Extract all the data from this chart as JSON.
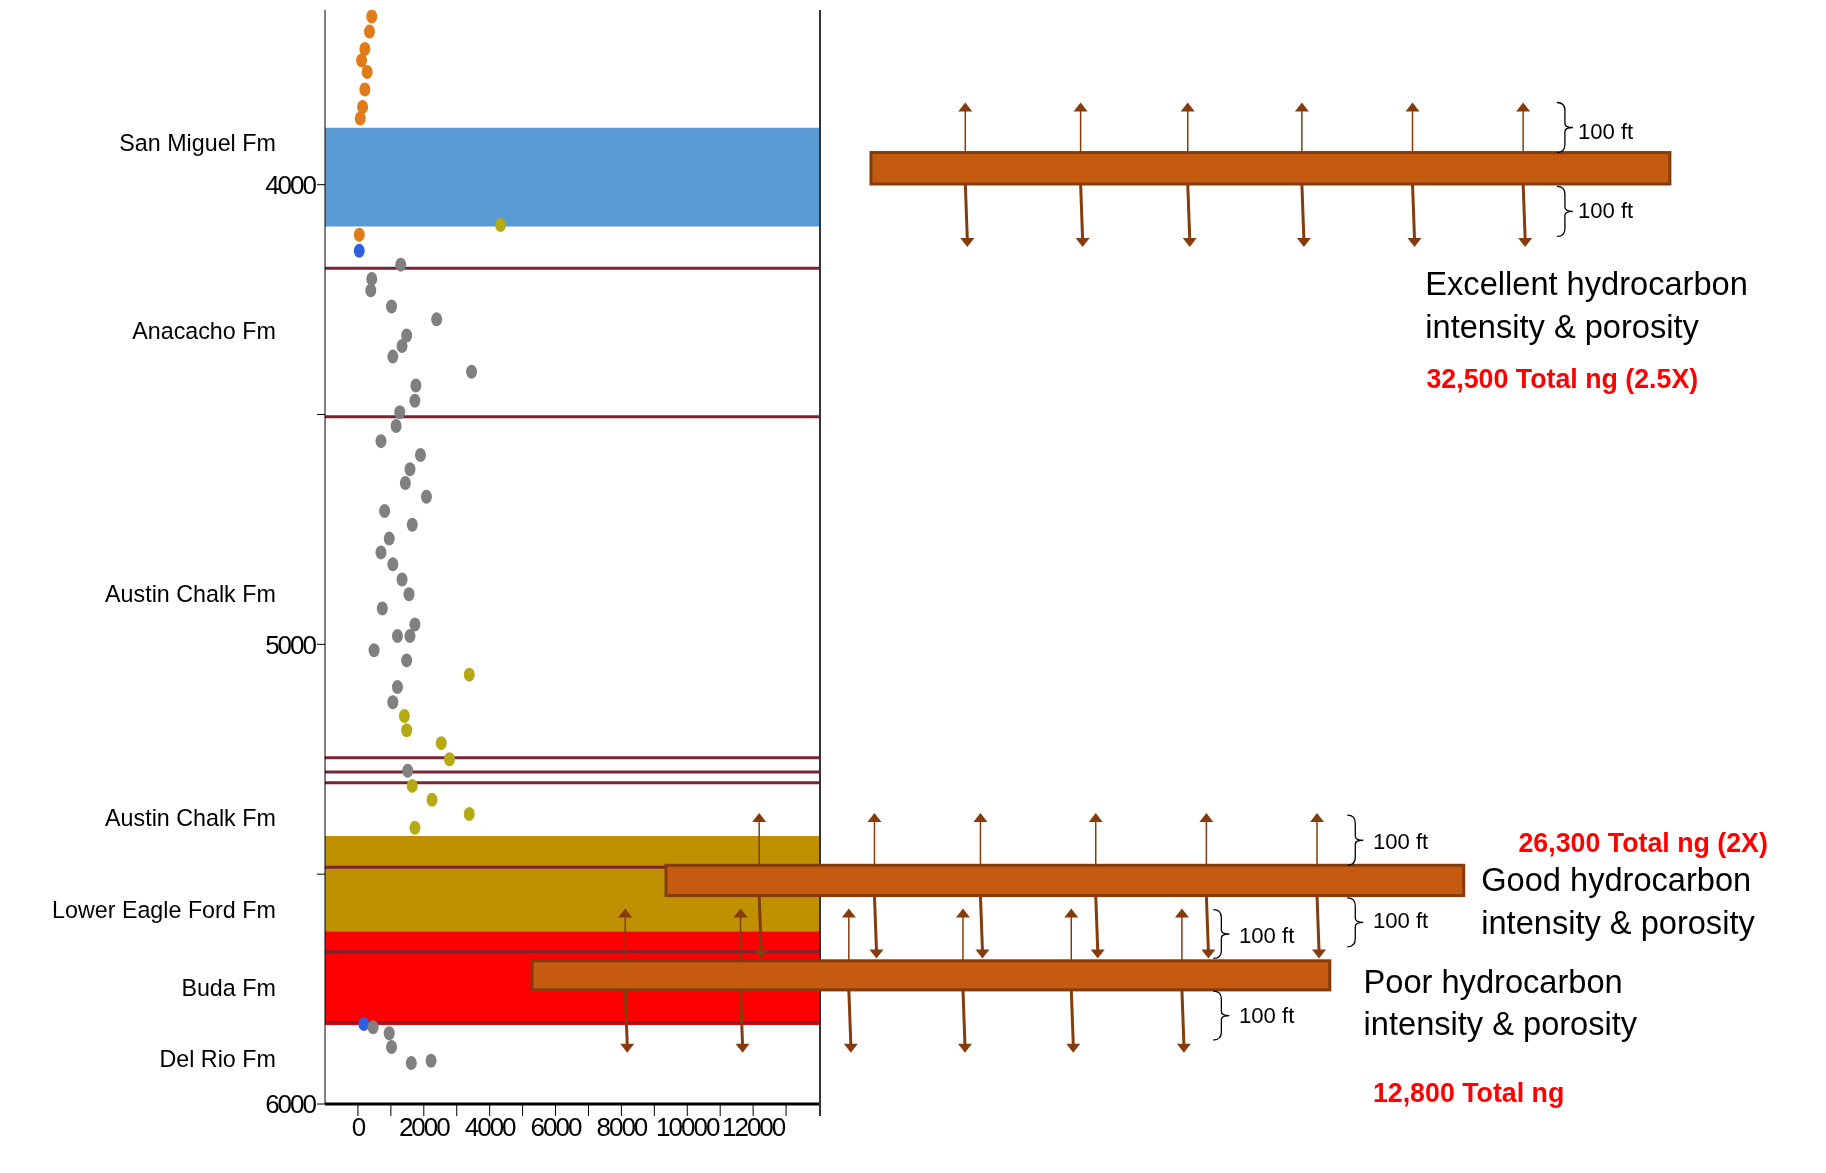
{
  "chart_data": {
    "type": "scatter",
    "marker": "circle",
    "legend": false,
    "grid": false,
    "xlim": [
      -1000,
      14000
    ],
    "xticks": [
      0,
      {
        "value": 1000,
        "label": null
      },
      2000,
      {
        "value": 3000,
        "label": null
      },
      4000,
      {
        "value": 5000,
        "label": null
      },
      6000,
      {
        "value": 7000,
        "label": null
      },
      8000,
      {
        "value": 9000,
        "label": null
      },
      10000,
      {
        "value": 11000,
        "label": null
      },
      12000,
      {
        "value": 13000,
        "label": null
      }
    ],
    "ylim": [
      6000,
      3620
    ],
    "yticks": [
      4000,
      {
        "value": 4500,
        "label": null
      },
      5000,
      {
        "value": 5500,
        "label": null
      },
      6000
    ],
    "series": [
      {
        "color": "#e07b1a",
        "x": [
          420,
          350,
          210,
          110,
          280,
          210,
          140,
          70,
          40
        ],
        "values": [
          3634,
          3667,
          3705,
          3730,
          3755,
          3793,
          3831,
          3856,
          4109
        ]
      },
      {
        "color": "#2f5fe0",
        "x": [
          40,
          180
        ],
        "values": [
          4144,
          5826
        ]
      },
      {
        "color": "#808080",
        "x": [
          1300,
          420,
          390,
          1020,
          2390,
          1480,
          1340,
          1060,
          3450,
          1760,
          1730,
          1270,
          1160,
          700,
          1900,
          1580,
          1440,
          2080,
          810,
          1650,
          950,
          700,
          1060,
          1340,
          1550,
          740,
          1730,
          1200,
          1580,
          490,
          1480,
          1200,
          1060,
          1510,
          460,
          950,
          1020,
          1620,
          2220
        ],
        "values": [
          4174,
          4205,
          4230,
          4265,
          4293,
          4328,
          4351,
          4374,
          4407,
          4437,
          4470,
          4495,
          4525,
          4558,
          4588,
          4619,
          4649,
          4679,
          4710,
          4740,
          4770,
          4800,
          4826,
          4859,
          4891,
          4922,
          4957,
          4982,
          4982,
          5013,
          5035,
          5093,
          5126,
          5275,
          5833,
          5846,
          5876,
          5911,
          5906
        ]
      },
      {
        "color": "#b5aa14",
        "x": [
          4330,
          3380,
          1410,
          1480,
          2530,
          2780,
          1650,
          2250,
          3380,
          1730
        ],
        "values": [
          4088,
          5066,
          5156,
          5187,
          5215,
          5250,
          5308,
          5338,
          5369,
          5399
        ]
      }
    ],
    "ref_lines": [
      {
        "axis": "y",
        "value": 4182,
        "color": "#7b2332"
      },
      {
        "axis": "y",
        "value": 4505,
        "color": "#7b2332"
      },
      {
        "axis": "y",
        "value": 5247,
        "color": "#7b2332"
      },
      {
        "axis": "y",
        "value": 5278,
        "color": "#7b2332"
      },
      {
        "axis": "y",
        "value": 5301,
        "color": "#7b2332"
      },
      {
        "axis": "y",
        "value": 5485,
        "color": "#7b2332"
      },
      {
        "axis": "y",
        "value": 5669,
        "color": "#7b2332"
      },
      {
        "axis": "y",
        "value": 5823,
        "color": "#7b2332"
      }
    ],
    "bands": [
      {
        "axis": "y",
        "from": 3876,
        "to": 4091,
        "color": "#5b9bd5"
      },
      {
        "axis": "y",
        "from": 5417,
        "to": 5624,
        "color": "#bf9000"
      },
      {
        "axis": "y",
        "from": 5624,
        "to": 5828,
        "color": "#ff0000"
      }
    ],
    "annotations": [
      "San Miguel Fm",
      "Anacacho Fm",
      "Austin Chalk Fm",
      "Austin Chalk Fm",
      "Lower Eagle Ford Fm",
      "Buda Fm",
      "Del Rio Fm",
      "Excellent hydrocarbon intensity & porosity",
      "32,500 Total ng (2.5X)",
      "100 ft",
      "100 ft",
      "Good hydrocarbon intensity & porosity",
      "26,300 Total ng (2X)",
      "100 ft",
      "100 ft",
      "Poor hydrocarbon intensity & porosity",
      "12,800 Total ng",
      "100 ft",
      "100 ft"
    ]
  }
}
